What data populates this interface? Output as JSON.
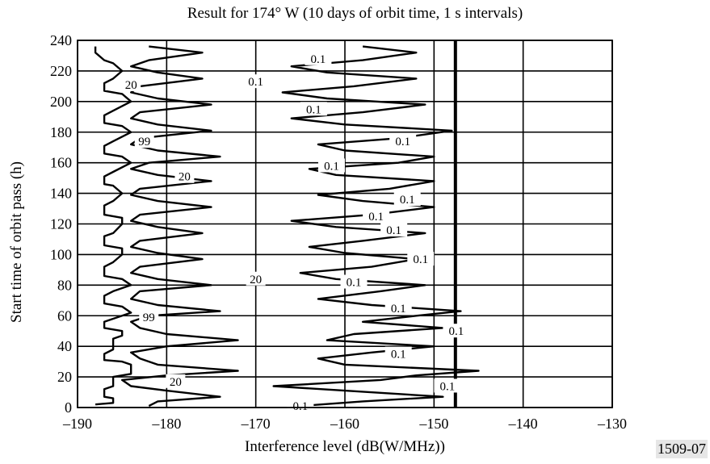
{
  "chart_data": {
    "type": "line",
    "title": "Result for 174° W (10 days of orbit time, 1 s intervals)",
    "xlabel": "Interference level (dB(W/MHz))",
    "ylabel": "Start time of orbit pass (h)",
    "xlim": [
      -190,
      -130
    ],
    "ylim": [
      0,
      240
    ],
    "x_ticks": [
      -190,
      -180,
      -170,
      -160,
      -150,
      -140,
      -130
    ],
    "x_tick_labels": [
      "–190",
      "–180",
      "–170",
      "–160",
      "–150",
      "–140",
      "–130"
    ],
    "y_ticks": [
      0,
      20,
      40,
      60,
      80,
      100,
      120,
      140,
      160,
      180,
      200,
      220,
      240
    ],
    "y_tick_labels": [
      "0",
      "20",
      "40",
      "60",
      "80",
      "100",
      "120",
      "140",
      "160",
      "180",
      "200",
      "220",
      "240"
    ],
    "grid": true,
    "series": [
      {
        "name": "99",
        "points": [
          [
            -188,
            2
          ],
          [
            -186,
            3
          ],
          [
            -186,
            6
          ],
          [
            -187,
            7
          ],
          [
            -187,
            12
          ],
          [
            -186,
            14
          ],
          [
            -186,
            20
          ],
          [
            -184,
            22
          ],
          [
            -184,
            28
          ],
          [
            -185,
            30
          ],
          [
            -187,
            31
          ],
          [
            -187,
            35
          ],
          [
            -186,
            38
          ],
          [
            -186,
            45
          ],
          [
            -185,
            47
          ],
          [
            -185,
            50
          ],
          [
            -187,
            52
          ],
          [
            -187,
            56
          ],
          [
            -186,
            58
          ],
          [
            -184,
            62
          ],
          [
            -185,
            66
          ],
          [
            -187,
            68
          ],
          [
            -187,
            73
          ],
          [
            -186,
            76
          ],
          [
            -184,
            80
          ],
          [
            -185,
            84
          ],
          [
            -187,
            86
          ],
          [
            -187,
            92
          ],
          [
            -186,
            95
          ],
          [
            -185,
            100
          ],
          [
            -185,
            104
          ],
          [
            -187,
            106
          ],
          [
            -187,
            112
          ],
          [
            -186,
            114
          ],
          [
            -185,
            120
          ],
          [
            -185,
            124
          ],
          [
            -187,
            126
          ],
          [
            -187,
            132
          ],
          [
            -186,
            135
          ],
          [
            -185,
            140
          ],
          [
            -186,
            145
          ],
          [
            -187,
            146
          ],
          [
            -187,
            151
          ],
          [
            -186,
            154
          ],
          [
            -184,
            160
          ],
          [
            -185,
            164
          ],
          [
            -187,
            166
          ],
          [
            -187,
            171
          ],
          [
            -186,
            174
          ],
          [
            -184,
            180
          ],
          [
            -185,
            184
          ],
          [
            -187,
            186
          ],
          [
            -187,
            191
          ],
          [
            -186,
            194
          ],
          [
            -184,
            200
          ],
          [
            -185,
            205
          ],
          [
            -187,
            207
          ],
          [
            -187,
            212
          ],
          [
            -186,
            215
          ],
          [
            -185,
            220
          ],
          [
            -186,
            225
          ],
          [
            -187,
            227
          ],
          [
            -188,
            232
          ],
          [
            -188,
            236
          ]
        ]
      },
      {
        "name": "20",
        "points": [
          [
            -182,
            1
          ],
          [
            -181,
            4
          ],
          [
            -174,
            7
          ],
          [
            -180,
            11
          ],
          [
            -184,
            14
          ],
          [
            -185,
            18
          ],
          [
            -180,
            21
          ],
          [
            -172,
            24
          ],
          [
            -181,
            28
          ],
          [
            -183,
            32
          ],
          [
            -184,
            36
          ],
          [
            -180,
            40
          ],
          [
            -172,
            44
          ],
          [
            -180,
            48
          ],
          [
            -183,
            52
          ],
          [
            -184,
            56
          ],
          [
            -182,
            60
          ],
          [
            -174,
            63
          ],
          [
            -181,
            67
          ],
          [
            -184,
            71
          ],
          [
            -183,
            76
          ],
          [
            -175,
            80
          ],
          [
            -181,
            84
          ],
          [
            -184,
            88
          ],
          [
            -183,
            92
          ],
          [
            -176,
            97
          ],
          [
            -181,
            101
          ],
          [
            -184,
            105
          ],
          [
            -183,
            109
          ],
          [
            -176,
            114
          ],
          [
            -181,
            118
          ],
          [
            -184,
            122
          ],
          [
            -183,
            126
          ],
          [
            -175,
            131
          ],
          [
            -181,
            135
          ],
          [
            -184,
            139
          ],
          [
            -183,
            143
          ],
          [
            -175,
            148
          ],
          [
            -181,
            152
          ],
          [
            -184,
            156
          ],
          [
            -182,
            160
          ],
          [
            -174,
            164
          ],
          [
            -181,
            168
          ],
          [
            -184,
            172
          ],
          [
            -183,
            176
          ],
          [
            -175,
            181
          ],
          [
            -181,
            185
          ],
          [
            -184,
            189
          ],
          [
            -183,
            193
          ],
          [
            -175,
            198
          ],
          [
            -181,
            202
          ],
          [
            -184,
            206
          ],
          [
            -183,
            210
          ],
          [
            -176,
            215
          ],
          [
            -181,
            219
          ],
          [
            -184,
            223
          ],
          [
            -182,
            227
          ],
          [
            -176,
            232
          ],
          [
            -182,
            236
          ]
        ]
      },
      {
        "name": "0.1",
        "points": [
          [
            -165,
            1
          ],
          [
            -158,
            4
          ],
          [
            -149,
            7
          ],
          [
            -160,
            11
          ],
          [
            -168,
            14
          ],
          [
            -156,
            18
          ],
          [
            -152,
            21
          ],
          [
            -145,
            24
          ],
          [
            -160,
            28
          ],
          [
            -163,
            32
          ],
          [
            -157,
            36
          ],
          [
            -150,
            40
          ],
          [
            -162,
            44
          ],
          [
            -159,
            48
          ],
          [
            -149,
            52
          ],
          [
            -158,
            56
          ],
          [
            -152,
            60
          ],
          [
            -147,
            63
          ],
          [
            -157,
            67
          ],
          [
            -163,
            71
          ],
          [
            -156,
            76
          ],
          [
            -151,
            80
          ],
          [
            -161,
            84
          ],
          [
            -165,
            88
          ],
          [
            -157,
            92
          ],
          [
            -152,
            97
          ],
          [
            -160,
            101
          ],
          [
            -164,
            105
          ],
          [
            -158,
            109
          ],
          [
            -151,
            114
          ],
          [
            -161,
            118
          ],
          [
            -166,
            122
          ],
          [
            -157,
            126
          ],
          [
            -150,
            131
          ],
          [
            -158,
            135
          ],
          [
            -163,
            139
          ],
          [
            -155,
            143
          ],
          [
            -150,
            148
          ],
          [
            -161,
            152
          ],
          [
            -164,
            156
          ],
          [
            -154,
            160
          ],
          [
            -150,
            164
          ],
          [
            -160,
            168
          ],
          [
            -163,
            172
          ],
          [
            -154,
            176
          ],
          [
            -148,
            181
          ],
          [
            -160,
            185
          ],
          [
            -166,
            189
          ],
          [
            -158,
            193
          ],
          [
            -151,
            198
          ],
          [
            -162,
            202
          ],
          [
            -167,
            206
          ],
          [
            -159,
            210
          ],
          [
            -152,
            215
          ],
          [
            -162,
            219
          ],
          [
            -166,
            223
          ],
          [
            -158,
            227
          ],
          [
            -152,
            232
          ],
          [
            -158,
            236
          ]
        ]
      }
    ],
    "annotations": [
      {
        "text": "0.1",
        "x": -165,
        "y": 1
      },
      {
        "text": "20",
        "x": -179,
        "y": 17
      },
      {
        "text": "0.1",
        "x": -148.5,
        "y": 14
      },
      {
        "text": "0.1",
        "x": -154,
        "y": 35
      },
      {
        "text": "0.1",
        "x": -147.5,
        "y": 50
      },
      {
        "text": "99",
        "x": -182,
        "y": 59
      },
      {
        "text": "0.1",
        "x": -154,
        "y": 65
      },
      {
        "text": "0.1",
        "x": -159,
        "y": 82
      },
      {
        "text": "20",
        "x": -170,
        "y": 84
      },
      {
        "text": "0.1",
        "x": -151.5,
        "y": 97
      },
      {
        "text": "0.1",
        "x": -154.5,
        "y": 116
      },
      {
        "text": "0.1",
        "x": -156.5,
        "y": 125
      },
      {
        "text": "0.1",
        "x": -153,
        "y": 136
      },
      {
        "text": "20",
        "x": -178,
        "y": 151
      },
      {
        "text": "0.1",
        "x": -161.5,
        "y": 158
      },
      {
        "text": "0.1",
        "x": -153.5,
        "y": 174
      },
      {
        "text": "99",
        "x": -182.5,
        "y": 174
      },
      {
        "text": "0.1",
        "x": -163.5,
        "y": 195
      },
      {
        "text": "20",
        "x": -184,
        "y": 211
      },
      {
        "text": "0.1",
        "x": -170,
        "y": 213
      },
      {
        "text": "0.1",
        "x": -163,
        "y": 228
      }
    ],
    "reference_line_x": -147.6
  },
  "figure_id": "1509-07"
}
